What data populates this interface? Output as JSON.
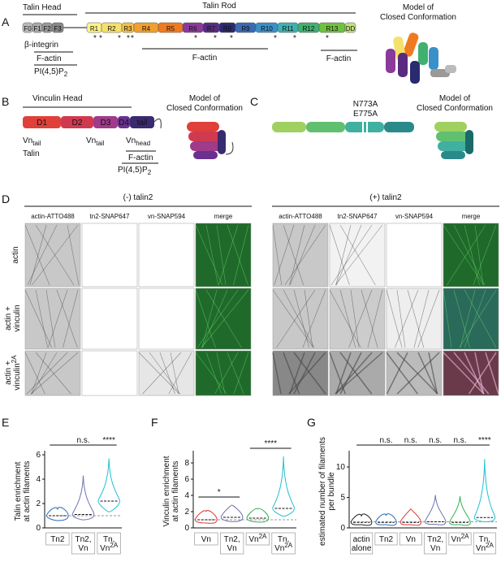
{
  "panel_labels": [
    "A",
    "B",
    "C",
    "D",
    "E",
    "F",
    "G"
  ],
  "panel_a": {
    "head_label": "Talin Head",
    "rod_label": "Talin Rod",
    "domains": [
      "F0",
      "F1",
      "F2",
      "F3",
      "R1",
      "R2",
      "R3",
      "R4",
      "R5",
      "R6",
      "R7",
      "R8",
      "R9",
      "R10",
      "R11",
      "R12",
      "R13",
      "DD"
    ],
    "star": "*",
    "integrin": "β-integrin",
    "head_actin": "F-actin",
    "pip": {
      "text": "PI(4,5)P",
      "sub": "2"
    },
    "rod_actin_1": "F-actin",
    "rod_actin_2": "F-actin",
    "model": [
      "Model of",
      "Closed Conformation"
    ]
  },
  "panel_b": {
    "head_label": "Vinculin Head",
    "domains": [
      "D1",
      "D2",
      "D3",
      "D4",
      "tail"
    ],
    "vn_tail_1": {
      "text": "Vn",
      "sub": "tail"
    },
    "talin": "Talin",
    "vn_tail_2": {
      "text": "Vn",
      "sub": "tail"
    },
    "vn_head": {
      "text": "Vn",
      "sub": "head"
    },
    "actin": "F-actin",
    "pip": {
      "text": "PI(4,5)P",
      "sub": "2"
    },
    "model": [
      "Model of",
      "Closed Conformation"
    ]
  },
  "panel_c": {
    "mutations": [
      "N773A",
      "E775A"
    ],
    "model": [
      "Model of",
      "Closed Conformation"
    ]
  },
  "panel_d": {
    "groups": [
      "(-) talin2",
      "(+) talin2"
    ],
    "channels": [
      "actin-ATTO488",
      "tn2-SNAP647",
      "vn-SNAP594",
      "merge"
    ],
    "rows": [
      {
        "lines": [
          "actin"
        ]
      },
      {
        "lines": [
          "actin +",
          "vinculin"
        ]
      },
      {
        "lines": [
          "actin +",
          "vinculin"
        ],
        "sup": "2A"
      }
    ]
  },
  "panel_e": {
    "ylabel": [
      "Talin enrichment",
      "at actin filaments"
    ],
    "ylim": [
      0,
      6
    ],
    "yticks": [
      0,
      2,
      4,
      6
    ],
    "categories": [
      [
        {
          "t": "Tn2"
        }
      ],
      [
        {
          "t": "Tn2,"
        },
        {
          "t": "Vn"
        }
      ],
      [
        {
          "t": "Tn,"
        },
        {
          "t": "Vn",
          "sup": "2A"
        }
      ]
    ],
    "medians": [
      1.0,
      1.1,
      2.2
    ],
    "maxima": [
      1.5,
      4.3,
      5.7
    ],
    "colors": [
      "#2a6ab8",
      "#7070b0",
      "#20c0d0"
    ],
    "sig": [
      {
        "text": "n.s.",
        "from": 0,
        "to": 2
      },
      {
        "text": "****",
        "from": 2,
        "to": 2
      }
    ]
  },
  "panel_f": {
    "ylabel": [
      "Vinculin enrichment",
      "at actin filaments"
    ],
    "ylim": [
      0,
      9
    ],
    "yticks": [
      0,
      2,
      4,
      6,
      8
    ],
    "categories": [
      [
        {
          "t": "Vn"
        }
      ],
      [
        {
          "t": "Tn2,"
        },
        {
          "t": "Vn"
        }
      ],
      [
        {
          "t": "Vn",
          "sup": "2A"
        }
      ],
      [
        {
          "t": "Tn,"
        },
        {
          "t": "Vn",
          "sup": "2A"
        }
      ]
    ],
    "medians": [
      1.0,
      1.3,
      1.2,
      2.4
    ],
    "maxima": [
      2.0,
      2.8,
      2.3,
      8.8
    ],
    "colors": [
      "#e03030",
      "#7070b0",
      "#30b050",
      "#20c0d0"
    ],
    "sig": [
      {
        "text": "*",
        "from": 0,
        "to": 1
      },
      {
        "text": "****",
        "from": 2,
        "to": 3
      }
    ]
  },
  "panel_g": {
    "ylabel": [
      "estimated number of filaments",
      "per bundle"
    ],
    "ylim": [
      0,
      12
    ],
    "yticks": [
      0,
      5,
      10
    ],
    "categories": [
      [
        {
          "t": "actin"
        },
        {
          "t": "alone"
        }
      ],
      [
        {
          "t": "Tn2"
        }
      ],
      [
        {
          "t": "Vn"
        }
      ],
      [
        {
          "t": "Tn2,"
        },
        {
          "t": "Vn"
        }
      ],
      [
        {
          "t": "Vn",
          "sup": "2A"
        }
      ],
      [
        {
          "t": "Tn,"
        },
        {
          "t": "Vn",
          "sup": "2A"
        }
      ]
    ],
    "medians": [
      0.9,
      0.9,
      0.9,
      1.0,
      0.9,
      1.7
    ],
    "maxima": [
      1.9,
      2.0,
      3.1,
      5.4,
      5.2,
      11.3
    ],
    "colors": [
      "#222222",
      "#2a6ab8",
      "#e03030",
      "#7070b0",
      "#30b050",
      "#20c0d0"
    ],
    "sig": [
      {
        "text": "n.s.",
        "from": 1,
        "to": 1
      },
      {
        "text": "n.s.",
        "from": 2,
        "to": 2
      },
      {
        "text": "n.s.",
        "from": 3,
        "to": 3
      },
      {
        "text": "n.s.",
        "from": 4,
        "to": 4
      },
      {
        "text": "****",
        "from": 5,
        "to": 5
      }
    ]
  }
}
